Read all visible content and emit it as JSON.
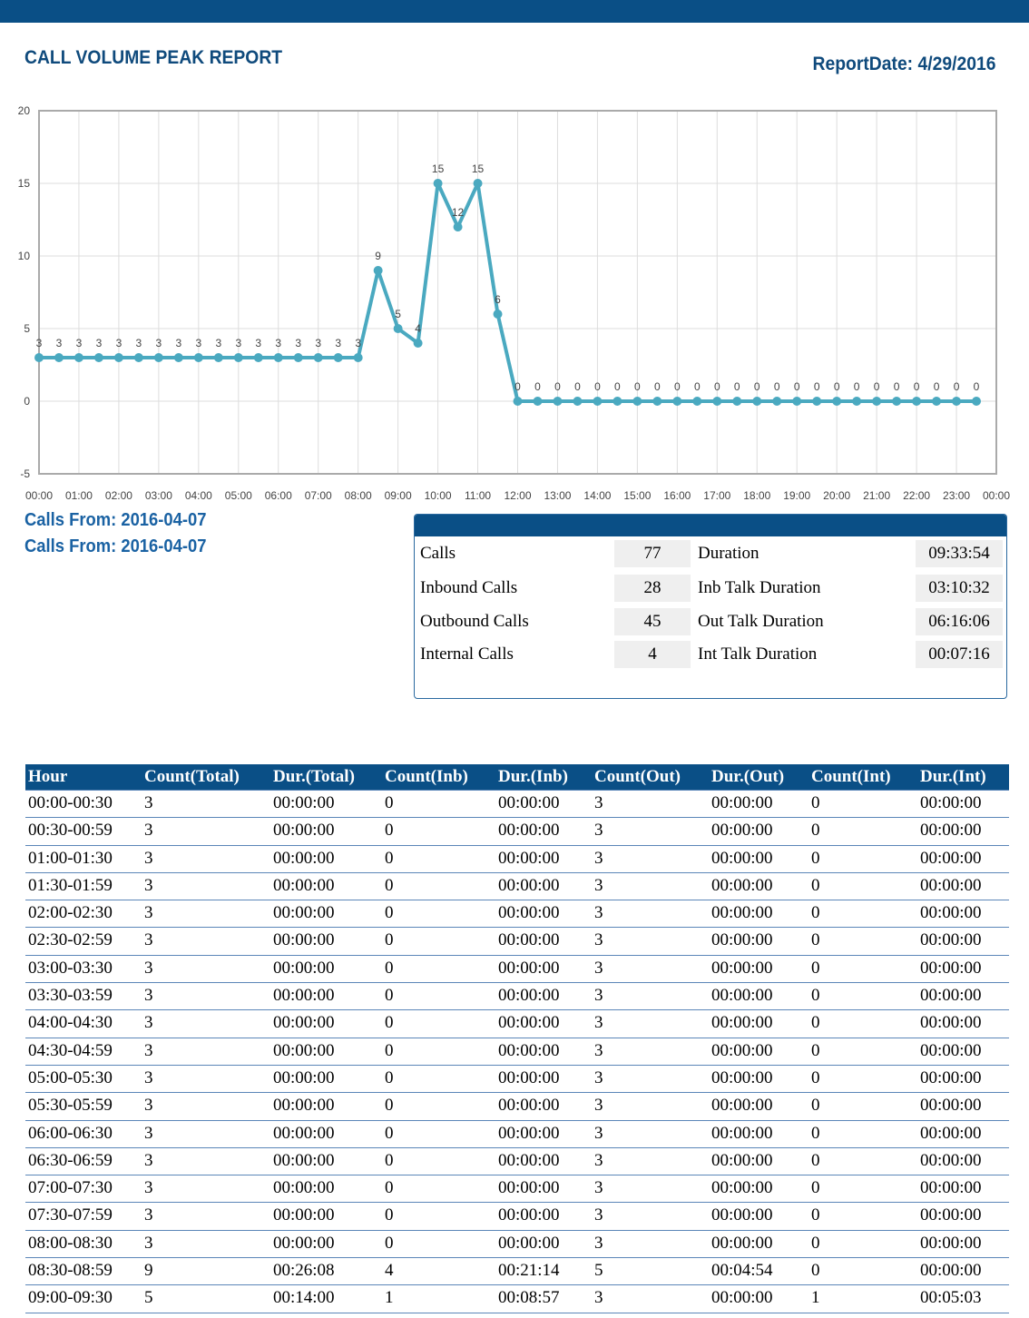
{
  "header": {
    "title": "CALL VOLUME PEAK REPORT",
    "report_date": "ReportDate: 4/29/2016"
  },
  "chart_data": {
    "type": "line",
    "color": "#4aa9c0",
    "grid": true,
    "x": [
      0,
      0.5,
      1,
      1.5,
      2,
      2.5,
      3,
      3.5,
      4,
      4.5,
      5,
      5.5,
      6,
      6.5,
      7,
      7.5,
      8,
      8.5,
      9,
      9.5,
      10,
      10.5,
      11,
      11.5,
      12,
      12.5,
      13,
      13.5,
      14,
      14.5,
      15,
      15.5,
      16,
      16.5,
      17,
      17.5,
      18,
      18.5,
      19,
      19.5,
      20,
      20.5,
      21,
      21.5,
      22,
      22.5,
      23,
      23.5
    ],
    "values": [
      3,
      3,
      3,
      3,
      3,
      3,
      3,
      3,
      3,
      3,
      3,
      3,
      3,
      3,
      3,
      3,
      3,
      9,
      5,
      4,
      15,
      12,
      15,
      6,
      0,
      0,
      0,
      0,
      0,
      0,
      0,
      0,
      0,
      0,
      0,
      0,
      0,
      0,
      0,
      0,
      0,
      0,
      0,
      0,
      0,
      0,
      0,
      0
    ],
    "xlim": [
      0,
      24
    ],
    "xticks": [
      {
        "value": 0,
        "label": "00:00"
      },
      {
        "value": 1,
        "label": "01:00"
      },
      {
        "value": 2,
        "label": "02:00"
      },
      {
        "value": 3,
        "label": "03:00"
      },
      {
        "value": 4,
        "label": "04:00"
      },
      {
        "value": 5,
        "label": "05:00"
      },
      {
        "value": 6,
        "label": "06:00"
      },
      {
        "value": 7,
        "label": "07:00"
      },
      {
        "value": 8,
        "label": "08:00"
      },
      {
        "value": 9,
        "label": "09:00"
      },
      {
        "value": 10,
        "label": "10:00"
      },
      {
        "value": 11,
        "label": "11:00"
      },
      {
        "value": 12,
        "label": "12:00"
      },
      {
        "value": 13,
        "label": "13:00"
      },
      {
        "value": 14,
        "label": "14:00"
      },
      {
        "value": 15,
        "label": "15:00"
      },
      {
        "value": 16,
        "label": "16:00"
      },
      {
        "value": 17,
        "label": "17:00"
      },
      {
        "value": 18,
        "label": "18:00"
      },
      {
        "value": 19,
        "label": "19:00"
      },
      {
        "value": 20,
        "label": "20:00"
      },
      {
        "value": 21,
        "label": "21:00"
      },
      {
        "value": 22,
        "label": "22:00"
      },
      {
        "value": 23,
        "label": "23:00"
      },
      {
        "value": 24,
        "label": "00:00"
      }
    ],
    "ylim": [
      -5,
      20
    ],
    "yticks": [
      -5,
      0,
      5,
      10,
      15,
      20
    ]
  },
  "calls_from": [
    "Calls From: 2016-04-07",
    "Calls From: 2016-04-07"
  ],
  "summary": {
    "rows": [
      [
        "Calls",
        "77",
        "Duration",
        "09:33:54"
      ],
      [
        "Inbound Calls",
        "28",
        "Inb Talk Duration",
        "03:10:32"
      ],
      [
        "Outbound Calls",
        "45",
        "Out Talk Duration",
        "06:16:06"
      ],
      [
        "Internal Calls",
        "4",
        "Int Talk Duration",
        "00:07:16"
      ]
    ]
  },
  "table": {
    "headers": [
      "Hour",
      "Count(Total)",
      "Dur.(Total)",
      "Count(Inb)",
      "Dur.(Inb)",
      "Count(Out)",
      "Dur.(Out)",
      "Count(Int)",
      "Dur.(Int)"
    ],
    "rows": [
      [
        "00:00-00:30",
        "3",
        "00:00:00",
        "0",
        "00:00:00",
        "3",
        "00:00:00",
        "0",
        "00:00:00"
      ],
      [
        "00:30-00:59",
        "3",
        "00:00:00",
        "0",
        "00:00:00",
        "3",
        "00:00:00",
        "0",
        "00:00:00"
      ],
      [
        "01:00-01:30",
        "3",
        "00:00:00",
        "0",
        "00:00:00",
        "3",
        "00:00:00",
        "0",
        "00:00:00"
      ],
      [
        "01:30-01:59",
        "3",
        "00:00:00",
        "0",
        "00:00:00",
        "3",
        "00:00:00",
        "0",
        "00:00:00"
      ],
      [
        "02:00-02:30",
        "3",
        "00:00:00",
        "0",
        "00:00:00",
        "3",
        "00:00:00",
        "0",
        "00:00:00"
      ],
      [
        "02:30-02:59",
        "3",
        "00:00:00",
        "0",
        "00:00:00",
        "3",
        "00:00:00",
        "0",
        "00:00:00"
      ],
      [
        "03:00-03:30",
        "3",
        "00:00:00",
        "0",
        "00:00:00",
        "3",
        "00:00:00",
        "0",
        "00:00:00"
      ],
      [
        "03:30-03:59",
        "3",
        "00:00:00",
        "0",
        "00:00:00",
        "3",
        "00:00:00",
        "0",
        "00:00:00"
      ],
      [
        "04:00-04:30",
        "3",
        "00:00:00",
        "0",
        "00:00:00",
        "3",
        "00:00:00",
        "0",
        "00:00:00"
      ],
      [
        "04:30-04:59",
        "3",
        "00:00:00",
        "0",
        "00:00:00",
        "3",
        "00:00:00",
        "0",
        "00:00:00"
      ],
      [
        "05:00-05:30",
        "3",
        "00:00:00",
        "0",
        "00:00:00",
        "3",
        "00:00:00",
        "0",
        "00:00:00"
      ],
      [
        "05:30-05:59",
        "3",
        "00:00:00",
        "0",
        "00:00:00",
        "3",
        "00:00:00",
        "0",
        "00:00:00"
      ],
      [
        "06:00-06:30",
        "3",
        "00:00:00",
        "0",
        "00:00:00",
        "3",
        "00:00:00",
        "0",
        "00:00:00"
      ],
      [
        "06:30-06:59",
        "3",
        "00:00:00",
        "0",
        "00:00:00",
        "3",
        "00:00:00",
        "0",
        "00:00:00"
      ],
      [
        "07:00-07:30",
        "3",
        "00:00:00",
        "0",
        "00:00:00",
        "3",
        "00:00:00",
        "0",
        "00:00:00"
      ],
      [
        "07:30-07:59",
        "3",
        "00:00:00",
        "0",
        "00:00:00",
        "3",
        "00:00:00",
        "0",
        "00:00:00"
      ],
      [
        "08:00-08:30",
        "3",
        "00:00:00",
        "0",
        "00:00:00",
        "3",
        "00:00:00",
        "0",
        "00:00:00"
      ],
      [
        "08:30-08:59",
        "9",
        "00:26:08",
        "4",
        "00:21:14",
        "5",
        "00:04:54",
        "0",
        "00:00:00"
      ],
      [
        "09:00-09:30",
        "5",
        "00:14:00",
        "1",
        "00:08:57",
        "3",
        "00:00:00",
        "1",
        "00:05:03"
      ]
    ]
  }
}
